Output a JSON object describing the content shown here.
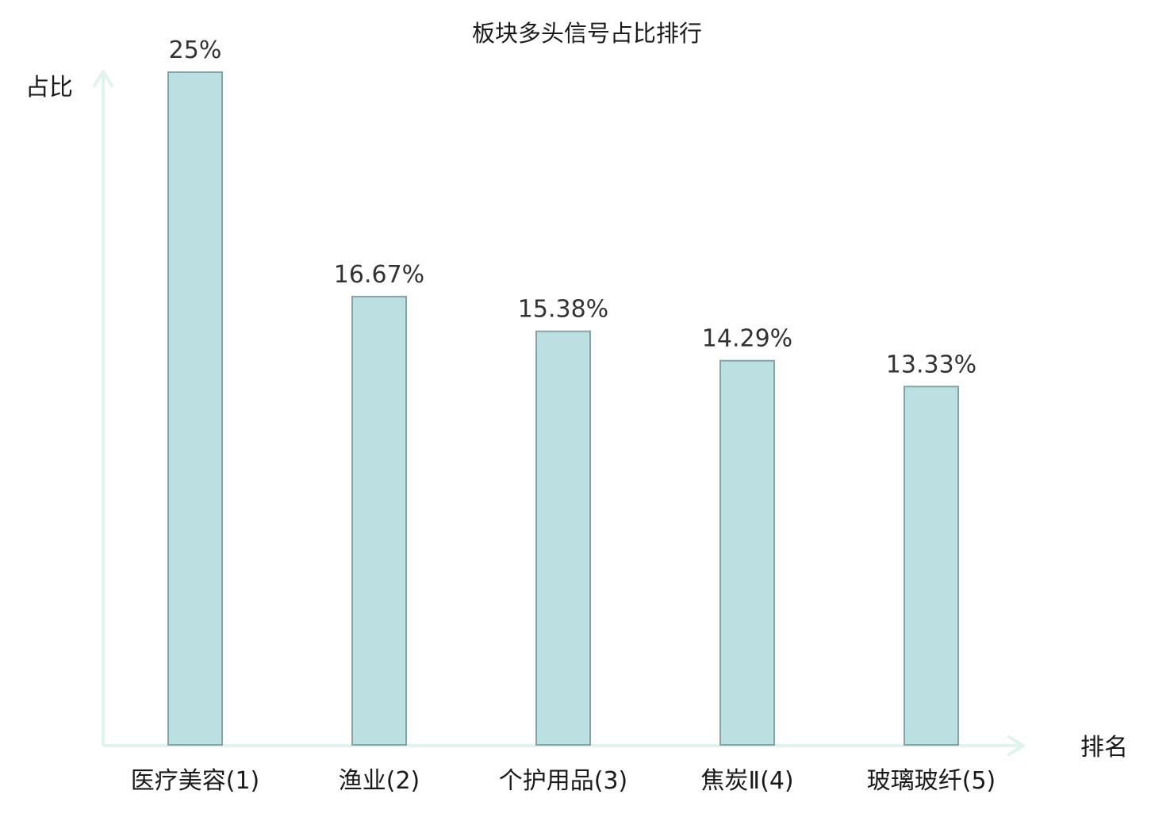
{
  "chart_data": {
    "type": "bar",
    "title": "板块多头信号占比排行",
    "xlabel": "排名",
    "ylabel": "占比",
    "categories": [
      "医疗美容(1)",
      "渔业(2)",
      "个护用品(3)",
      "焦炭Ⅱ(4)",
      "玻璃玻纤(5)"
    ],
    "values": [
      25,
      16.67,
      15.38,
      14.29,
      13.33
    ],
    "value_labels": [
      "25%",
      "16.67%",
      "15.38%",
      "14.29%",
      "13.33%"
    ],
    "ylim": [
      0,
      25
    ],
    "grid": false,
    "legend": "none",
    "highlight_index": 0
  },
  "colors": {
    "bar_fill": "#bce0e1",
    "bar_stroke": "#86a3a5",
    "axis": "#e0f3ef",
    "highlight_text": "#e02020",
    "text": "#1a1a1a"
  }
}
